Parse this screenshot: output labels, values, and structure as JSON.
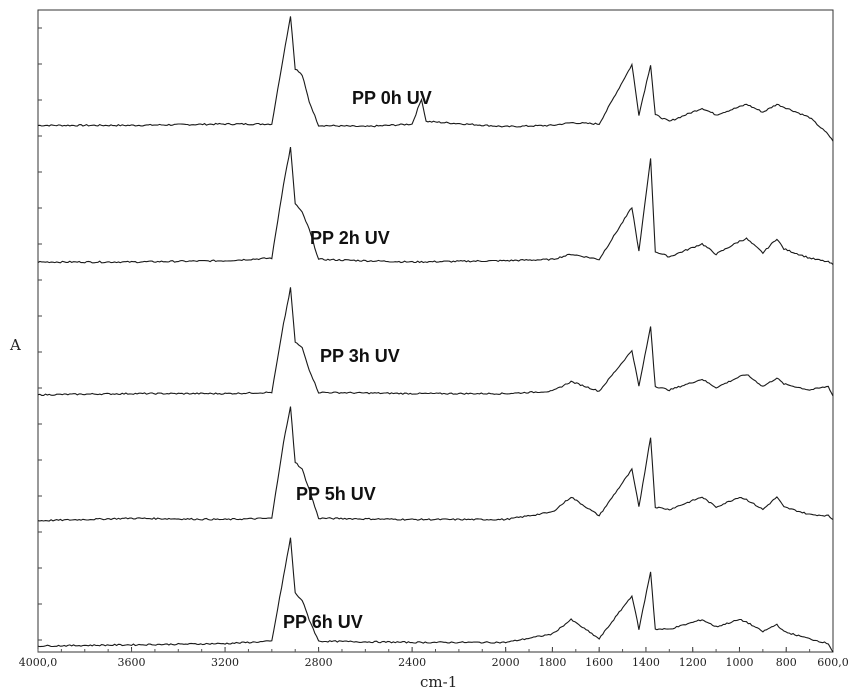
{
  "chart_data": {
    "type": "line",
    "title": "",
    "xlabel": "cm-1",
    "ylabel": "A",
    "x_axis": {
      "range": [
        4000,
        600
      ],
      "reversed": true,
      "ticks": [
        4000,
        3600,
        3200,
        2800,
        2400,
        2000,
        1800,
        1600,
        1400,
        1200,
        1000,
        800,
        600
      ],
      "tick_labels": [
        "4000,0",
        "3600",
        "3200",
        "2800",
        "2400",
        "2000",
        "1800",
        "1600",
        "1400",
        "1200",
        "1000",
        "800",
        "600,0"
      ]
    },
    "y_axis": {
      "tick_labels_shown": false,
      "stacked_offset": true
    },
    "grid": false,
    "legend": "none (each trace labelled in-plot)",
    "series": [
      {
        "name": "PP 0h UV",
        "points": [
          [
            4000,
            0.02
          ],
          [
            3600,
            0.02
          ],
          [
            3200,
            0.03
          ],
          [
            3000,
            0.03
          ],
          [
            2950,
            0.55
          ],
          [
            2920,
            0.85
          ],
          [
            2900,
            0.45
          ],
          [
            2870,
            0.4
          ],
          [
            2840,
            0.2
          ],
          [
            2800,
            0.02
          ],
          [
            2600,
            0.01
          ],
          [
            2400,
            0.03
          ],
          [
            2360,
            0.22
          ],
          [
            2340,
            0.05
          ],
          [
            2000,
            0.01
          ],
          [
            1800,
            0.02
          ],
          [
            1720,
            0.04
          ],
          [
            1600,
            0.03
          ],
          [
            1460,
            0.48
          ],
          [
            1430,
            0.1
          ],
          [
            1380,
            0.48
          ],
          [
            1360,
            0.1
          ],
          [
            1300,
            0.05
          ],
          [
            1160,
            0.15
          ],
          [
            1100,
            0.1
          ],
          [
            1000,
            0.16
          ],
          [
            970,
            0.18
          ],
          [
            900,
            0.12
          ],
          [
            840,
            0.18
          ],
          [
            700,
            0.08
          ],
          [
            620,
            -0.05
          ],
          [
            600,
            -0.1
          ]
        ]
      },
      {
        "name": "PP 2h UV",
        "points": [
          [
            4000,
            0.0
          ],
          [
            3600,
            0.0
          ],
          [
            3200,
            0.01
          ],
          [
            3000,
            0.03
          ],
          [
            2950,
            0.6
          ],
          [
            2920,
            0.88
          ],
          [
            2900,
            0.45
          ],
          [
            2870,
            0.38
          ],
          [
            2840,
            0.25
          ],
          [
            2800,
            0.02
          ],
          [
            2400,
            0.0
          ],
          [
            2000,
            0.01
          ],
          [
            1800,
            0.02
          ],
          [
            1720,
            0.06
          ],
          [
            1600,
            0.02
          ],
          [
            1460,
            0.42
          ],
          [
            1430,
            0.08
          ],
          [
            1380,
            0.8
          ],
          [
            1360,
            0.08
          ],
          [
            1300,
            0.04
          ],
          [
            1160,
            0.14
          ],
          [
            1100,
            0.06
          ],
          [
            1000,
            0.16
          ],
          [
            970,
            0.18
          ],
          [
            900,
            0.07
          ],
          [
            840,
            0.18
          ],
          [
            810,
            0.1
          ],
          [
            700,
            0.03
          ],
          [
            620,
            0.0
          ],
          [
            600,
            -0.02
          ]
        ]
      },
      {
        "name": "PP 3h UV",
        "points": [
          [
            4000,
            0.01
          ],
          [
            3600,
            0.02
          ],
          [
            3200,
            0.02
          ],
          [
            3000,
            0.03
          ],
          [
            2950,
            0.6
          ],
          [
            2920,
            0.9
          ],
          [
            2900,
            0.45
          ],
          [
            2870,
            0.4
          ],
          [
            2840,
            0.22
          ],
          [
            2800,
            0.03
          ],
          [
            2400,
            0.02
          ],
          [
            2000,
            0.02
          ],
          [
            1800,
            0.04
          ],
          [
            1720,
            0.12
          ],
          [
            1600,
            0.04
          ],
          [
            1460,
            0.38
          ],
          [
            1430,
            0.08
          ],
          [
            1380,
            0.58
          ],
          [
            1360,
            0.08
          ],
          [
            1300,
            0.05
          ],
          [
            1160,
            0.14
          ],
          [
            1100,
            0.07
          ],
          [
            1000,
            0.16
          ],
          [
            970,
            0.18
          ],
          [
            900,
            0.08
          ],
          [
            840,
            0.15
          ],
          [
            810,
            0.1
          ],
          [
            700,
            0.05
          ],
          [
            620,
            0.08
          ],
          [
            600,
            0.0
          ]
        ]
      },
      {
        "name": "PP 5h UV",
        "points": [
          [
            4000,
            0.01
          ],
          [
            3600,
            0.03
          ],
          [
            3200,
            0.02
          ],
          [
            3000,
            0.03
          ],
          [
            2950,
            0.64
          ],
          [
            2920,
            0.92
          ],
          [
            2900,
            0.48
          ],
          [
            2870,
            0.42
          ],
          [
            2840,
            0.26
          ],
          [
            2800,
            0.03
          ],
          [
            2400,
            0.02
          ],
          [
            2000,
            0.02
          ],
          [
            1800,
            0.08
          ],
          [
            1720,
            0.2
          ],
          [
            1600,
            0.05
          ],
          [
            1460,
            0.42
          ],
          [
            1430,
            0.12
          ],
          [
            1380,
            0.68
          ],
          [
            1360,
            0.12
          ],
          [
            1300,
            0.1
          ],
          [
            1160,
            0.2
          ],
          [
            1100,
            0.12
          ],
          [
            1000,
            0.2
          ],
          [
            970,
            0.18
          ],
          [
            900,
            0.1
          ],
          [
            840,
            0.2
          ],
          [
            810,
            0.12
          ],
          [
            700,
            0.06
          ],
          [
            620,
            0.05
          ],
          [
            600,
            0.02
          ]
        ]
      },
      {
        "name": "PP 6h UV",
        "points": [
          [
            4000,
            0.0
          ],
          [
            3600,
            0.01
          ],
          [
            3200,
            0.02
          ],
          [
            3000,
            0.04
          ],
          [
            2950,
            0.58
          ],
          [
            2920,
            0.9
          ],
          [
            2900,
            0.44
          ],
          [
            2870,
            0.38
          ],
          [
            2840,
            0.22
          ],
          [
            2800,
            0.04
          ],
          [
            2400,
            0.03
          ],
          [
            2000,
            0.03
          ],
          [
            1800,
            0.1
          ],
          [
            1720,
            0.22
          ],
          [
            1600,
            0.06
          ],
          [
            1460,
            0.42
          ],
          [
            1430,
            0.14
          ],
          [
            1380,
            0.62
          ],
          [
            1360,
            0.14
          ],
          [
            1300,
            0.14
          ],
          [
            1160,
            0.22
          ],
          [
            1100,
            0.16
          ],
          [
            1000,
            0.22
          ],
          [
            970,
            0.2
          ],
          [
            900,
            0.12
          ],
          [
            840,
            0.18
          ],
          [
            810,
            0.12
          ],
          [
            700,
            0.06
          ],
          [
            620,
            0.02
          ],
          [
            600,
            -0.05
          ]
        ]
      }
    ]
  }
}
